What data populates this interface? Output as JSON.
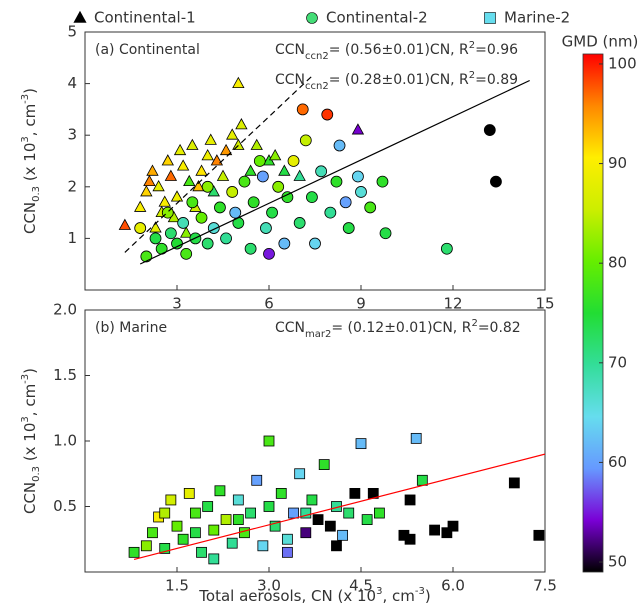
{
  "chart_data": [
    {
      "type": "scatter",
      "annotation": "(a) Continental",
      "xlim": [
        0,
        15
      ],
      "xticks": [
        3,
        6,
        9,
        12,
        15
      ],
      "ylim": [
        0,
        5
      ],
      "yticks": [
        1,
        2,
        3,
        4,
        5
      ],
      "ylabel": [
        {
          "text": "CCN"
        },
        {
          "text": "0.3",
          "script": "sub"
        },
        {
          "text": " (x 10"
        },
        {
          "text": "3",
          "script": "sup"
        },
        {
          "text": ", cm"
        },
        {
          "text": "-3",
          "script": "sup"
        },
        {
          "text": ")"
        }
      ],
      "fits": [
        {
          "slope": 0.56,
          "x_range": [
            1.3,
            7.4
          ],
          "color": "#000000",
          "dashed": true,
          "label": [
            {
              "text": "CCN"
            },
            {
              "text": "ccn2",
              "script": "sub"
            },
            {
              "text": "= (0.56±0.01)CN, R"
            },
            {
              "text": "2",
              "script": "sup"
            },
            {
              "text": "=0.96"
            }
          ]
        },
        {
          "slope": 0.28,
          "x_range": [
            1.8,
            14.5
          ],
          "color": "#000000",
          "dashed": false,
          "label": [
            {
              "text": "CCN"
            },
            {
              "text": "ccn2",
              "script": "sub"
            },
            {
              "text": "= (0.28±0.01)CN, R"
            },
            {
              "text": "2",
              "script": "sup"
            },
            {
              "text": "=0.89"
            }
          ]
        }
      ],
      "series": [
        {
          "name": "Continental-1",
          "marker": "triangle",
          "color": "#000000",
          "x": [
            1.3,
            1.8,
            2.0,
            2.2,
            2.4,
            2.5,
            2.7,
            2.8,
            3.0,
            3.1,
            3.2,
            3.4,
            3.5,
            3.6,
            3.8,
            4.0,
            4.1,
            4.3,
            4.5,
            4.6,
            4.8,
            5.0,
            5.1,
            5.0,
            5.4,
            5.6,
            6.0,
            6.2,
            6.5,
            7.0,
            8.9,
            2.3,
            2.9,
            3.3,
            2.6,
            4.2,
            2.1,
            3.7
          ],
          "y": [
            1.25,
            1.6,
            1.9,
            2.3,
            2.0,
            1.5,
            2.5,
            2.2,
            1.8,
            2.7,
            2.4,
            2.1,
            2.8,
            1.6,
            2.3,
            2.6,
            2.9,
            2.5,
            2.2,
            2.7,
            3.0,
            2.8,
            3.2,
            4.0,
            2.3,
            2.8,
            2.5,
            2.6,
            2.3,
            2.2,
            3.1,
            1.2,
            1.4,
            1.1,
            1.7,
            1.9,
            2.1,
            2.0
          ],
          "gmd": [
            98,
            90,
            92,
            94,
            88,
            86,
            92,
            97,
            89,
            88,
            90,
            78,
            87,
            86,
            91,
            89,
            88,
            96,
            85,
            95,
            88,
            86,
            87,
            90,
            76,
            84,
            76,
            82,
            74,
            70,
            54,
            88,
            84,
            82,
            90,
            72,
            96,
            93
          ]
        },
        {
          "name": "Continental-2",
          "marker": "circle",
          "color": "#44dd77",
          "x": [
            1.8,
            2.0,
            2.3,
            2.5,
            2.8,
            3.0,
            3.2,
            3.3,
            3.6,
            3.8,
            4.0,
            4.2,
            4.4,
            4.6,
            4.8,
            5.0,
            5.2,
            5.4,
            5.5,
            5.7,
            5.9,
            6.0,
            6.1,
            6.3,
            6.5,
            6.6,
            6.8,
            7.0,
            7.1,
            7.2,
            7.4,
            7.5,
            7.7,
            7.9,
            8.0,
            8.2,
            8.3,
            8.5,
            8.6,
            9.0,
            9.3,
            9.8,
            9.7,
            11.8,
            13.2,
            13.4,
            4.0,
            3.5,
            2.7,
            4.9,
            5.8,
            8.9
          ],
          "y": [
            1.2,
            0.65,
            1.0,
            0.8,
            1.1,
            0.9,
            1.3,
            0.7,
            1.0,
            1.4,
            0.9,
            1.2,
            1.6,
            1.0,
            1.9,
            1.3,
            2.1,
            0.8,
            1.7,
            2.5,
            1.2,
            0.7,
            1.5,
            2.0,
            0.9,
            1.8,
            2.5,
            1.3,
            3.5,
            2.9,
            1.8,
            0.9,
            2.3,
            3.4,
            1.5,
            2.1,
            2.8,
            1.7,
            1.2,
            1.9,
            1.6,
            1.1,
            2.1,
            0.8,
            3.1,
            2.1,
            2.0,
            1.7,
            1.5,
            1.5,
            2.2,
            2.2
          ],
          "gmd": [
            88,
            78,
            74,
            76,
            72,
            75,
            68,
            78,
            74,
            80,
            72,
            66,
            76,
            70,
            85,
            74,
            78,
            72,
            76,
            80,
            68,
            55,
            74,
            82,
            62,
            76,
            88,
            72,
            97,
            85,
            74,
            64,
            68,
            99,
            70,
            76,
            62,
            60,
            74,
            66,
            78,
            74,
            76,
            72,
            49,
            49,
            82,
            78,
            82,
            62,
            60,
            64
          ]
        }
      ]
    },
    {
      "type": "scatter",
      "annotation": "(b) Marine",
      "xlim": [
        0,
        7.5
      ],
      "xticks": [
        1.5,
        {
          "value": 3.0,
          "label": "3.0"
        },
        4.5,
        {
          "value": 6.0,
          "label": "6.0"
        },
        7.5
      ],
      "ylim": [
        0,
        2
      ],
      "yticks": [
        0.5,
        {
          "value": 1.0,
          "label": "1.0"
        },
        1.5,
        {
          "value": 2.0,
          "label": "2.0"
        }
      ],
      "xlabel": [
        {
          "text": "Total aerosols, CN (x 10"
        },
        {
          "text": "3",
          "script": "sup"
        },
        {
          "text": ", cm"
        },
        {
          "text": "-3",
          "script": "sup"
        },
        {
          "text": ")"
        }
      ],
      "ylabel": [
        {
          "text": "CCN"
        },
        {
          "text": "0.3",
          "script": "sub"
        },
        {
          "text": " (x 10"
        },
        {
          "text": "3",
          "script": "sup"
        },
        {
          "text": ", cm"
        },
        {
          "text": "-3",
          "script": "sup"
        },
        {
          "text": ")"
        }
      ],
      "fits": [
        {
          "slope": 0.12,
          "x_range": [
            0.8,
            7.5
          ],
          "color": "#ff0000",
          "dashed": false,
          "label": [
            {
              "text": "CCN"
            },
            {
              "text": "mar2",
              "script": "sub"
            },
            {
              "text": "= (0.12±0.01)CN, R"
            },
            {
              "text": "2",
              "script": "sup"
            },
            {
              "text": "=0.82"
            }
          ]
        }
      ],
      "series": [
        {
          "name": "Marine-2",
          "marker": "square",
          "color": "#66ddee",
          "x": [
            0.8,
            1.0,
            1.1,
            1.2,
            1.3,
            1.4,
            1.5,
            1.6,
            1.7,
            1.8,
            1.9,
            2.0,
            2.1,
            2.2,
            2.3,
            2.4,
            2.5,
            2.6,
            2.7,
            2.8,
            2.9,
            3.0,
            3.0,
            3.1,
            3.2,
            3.3,
            3.4,
            3.5,
            3.6,
            3.7,
            3.8,
            3.9,
            4.0,
            4.1,
            4.2,
            4.3,
            4.4,
            4.5,
            4.6,
            4.7,
            4.8,
            5.2,
            5.3,
            5.4,
            5.5,
            5.7,
            5.9,
            6.0,
            7.0,
            7.4,
            5.3,
            3.3,
            2.1,
            4.1,
            1.3,
            2.5,
            1.8,
            3.6
          ],
          "y": [
            0.15,
            0.2,
            0.3,
            0.42,
            0.18,
            0.55,
            0.35,
            0.25,
            0.6,
            0.45,
            0.15,
            0.5,
            0.32,
            0.62,
            0.4,
            0.22,
            0.55,
            0.3,
            0.45,
            0.7,
            0.2,
            1.0,
            0.5,
            0.35,
            0.6,
            0.25,
            0.45,
            0.75,
            0.3,
            0.55,
            0.4,
            0.82,
            0.35,
            0.5,
            0.28,
            0.45,
            0.6,
            0.98,
            0.4,
            0.6,
            0.45,
            0.28,
            0.55,
            1.02,
            0.7,
            0.32,
            0.3,
            0.35,
            0.68,
            0.28,
            0.25,
            0.15,
            0.1,
            0.2,
            0.45,
            0.4,
            0.3,
            0.45
          ],
          "gmd": [
            76,
            82,
            78,
            90,
            74,
            86,
            80,
            76,
            88,
            78,
            72,
            74,
            80,
            76,
            84,
            70,
            66,
            78,
            72,
            60,
            64,
            78,
            74,
            72,
            76,
            66,
            60,
            64,
            52,
            74,
            49,
            76,
            49,
            70,
            62,
            72,
            49,
            62,
            74,
            49,
            76,
            49,
            49,
            62,
            74,
            49,
            49,
            49,
            49,
            49,
            49,
            58,
            70,
            49,
            84,
            76,
            74,
            70
          ]
        }
      ]
    }
  ],
  "colorbar": {
    "label": "GMD (nm)",
    "lim": [
      49,
      101
    ],
    "ticks": [
      50,
      60,
      70,
      80,
      90,
      100
    ],
    "colors": [
      "#000000",
      "#7a00d6",
      "#6699ff",
      "#66ddee",
      "#33dd99",
      "#22dd33",
      "#66ee00",
      "#ccee00",
      "#ffee00",
      "#ff8800",
      "#ff0000"
    ]
  }
}
